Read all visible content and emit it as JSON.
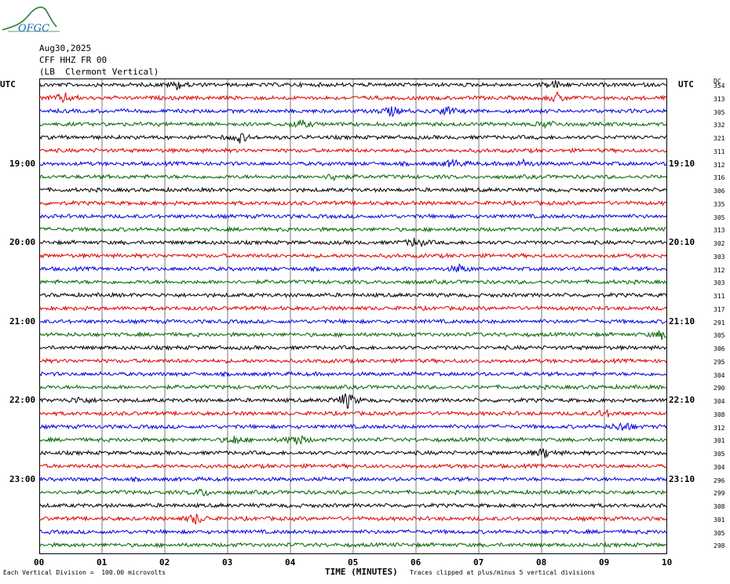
{
  "logo": {
    "text": "OFGC"
  },
  "header": {
    "date": "Aug30,2025",
    "station": "CFF HHZ FR 00",
    "location": "(LB  Clermont Vertical)"
  },
  "labels": {
    "utc_left": "UTC",
    "utc_right": "UTC",
    "dc_header": "DC"
  },
  "footer": {
    "scale": "Each Vertical Division =  100.00 microvolts",
    "clip": "Traces clipped at plus/minus 5 vertical divisions",
    "xlabel": "TIME (MINUTES)"
  },
  "chart_data": {
    "type": "line",
    "title": "",
    "xlabel": "TIME (MINUTES)",
    "ylabel": "",
    "x_ticks": [
      "00",
      "01",
      "02",
      "03",
      "04",
      "05",
      "06",
      "07",
      "08",
      "09",
      "10"
    ],
    "xlim": [
      0,
      10
    ],
    "trace_colors": [
      "#000000",
      "#dd0000",
      "#0000dd",
      "#006600"
    ],
    "hour_labels_left": [
      {
        "row": 6,
        "text": "19:00"
      },
      {
        "row": 12,
        "text": "20:00"
      },
      {
        "row": 18,
        "text": "21:00"
      },
      {
        "row": 24,
        "text": "22:00"
      },
      {
        "row": 30,
        "text": "23:00"
      }
    ],
    "hour_labels_right": [
      {
        "row": 6,
        "text": "19:10"
      },
      {
        "row": 12,
        "text": "20:10"
      },
      {
        "row": 18,
        "text": "21:10"
      },
      {
        "row": 24,
        "text": "22:10"
      },
      {
        "row": 30,
        "text": "23:10"
      }
    ],
    "dc_offsets": [
      "354",
      "313",
      "305",
      "332",
      "321",
      "311",
      "312",
      "316",
      "306",
      "335",
      "305",
      "313",
      "302",
      "303",
      "312",
      "303",
      "311",
      "317",
      "291",
      "305",
      "306",
      "295",
      "304",
      "290",
      "304",
      "308",
      "312",
      "301",
      "305",
      "304",
      "296",
      "299",
      "308",
      "301",
      "305",
      "298"
    ],
    "events": [
      {
        "row": 0,
        "min": 2.2,
        "amp": 1.6
      },
      {
        "row": 0,
        "min": 8.2,
        "amp": 1.5
      },
      {
        "row": 1,
        "min": 0.4,
        "amp": 1.8
      },
      {
        "row": 1,
        "min": 8.25,
        "amp": 1.6
      },
      {
        "row": 2,
        "min": 5.6,
        "amp": 1.8
      },
      {
        "row": 2,
        "min": 6.5,
        "amp": 1.7
      },
      {
        "row": 3,
        "min": 4.15,
        "amp": 1.5
      },
      {
        "row": 3,
        "min": 8.1,
        "amp": 1.4
      },
      {
        "row": 4,
        "min": 3.2,
        "amp": 1.7
      },
      {
        "row": 6,
        "min": 6.6,
        "amp": 1.6
      },
      {
        "row": 6,
        "min": 7.7,
        "amp": 1.4
      },
      {
        "row": 7,
        "min": 4.7,
        "amp": 1.3
      },
      {
        "row": 12,
        "min": 6.0,
        "amp": 2.0
      },
      {
        "row": 14,
        "min": 6.7,
        "amp": 1.4
      },
      {
        "row": 19,
        "min": 9.9,
        "amp": 1.5
      },
      {
        "row": 24,
        "min": 4.9,
        "amp": 3.2
      },
      {
        "row": 24,
        "min": 0.65,
        "amp": 1.4
      },
      {
        "row": 25,
        "min": 9.0,
        "amp": 1.3
      },
      {
        "row": 26,
        "min": 9.3,
        "amp": 2.0
      },
      {
        "row": 27,
        "min": 4.1,
        "amp": 2.2
      },
      {
        "row": 27,
        "min": 3.1,
        "amp": 1.6
      },
      {
        "row": 28,
        "min": 8.05,
        "amp": 1.8
      },
      {
        "row": 31,
        "min": 2.6,
        "amp": 1.3
      },
      {
        "row": 33,
        "min": 2.5,
        "amp": 2.0
      }
    ]
  }
}
